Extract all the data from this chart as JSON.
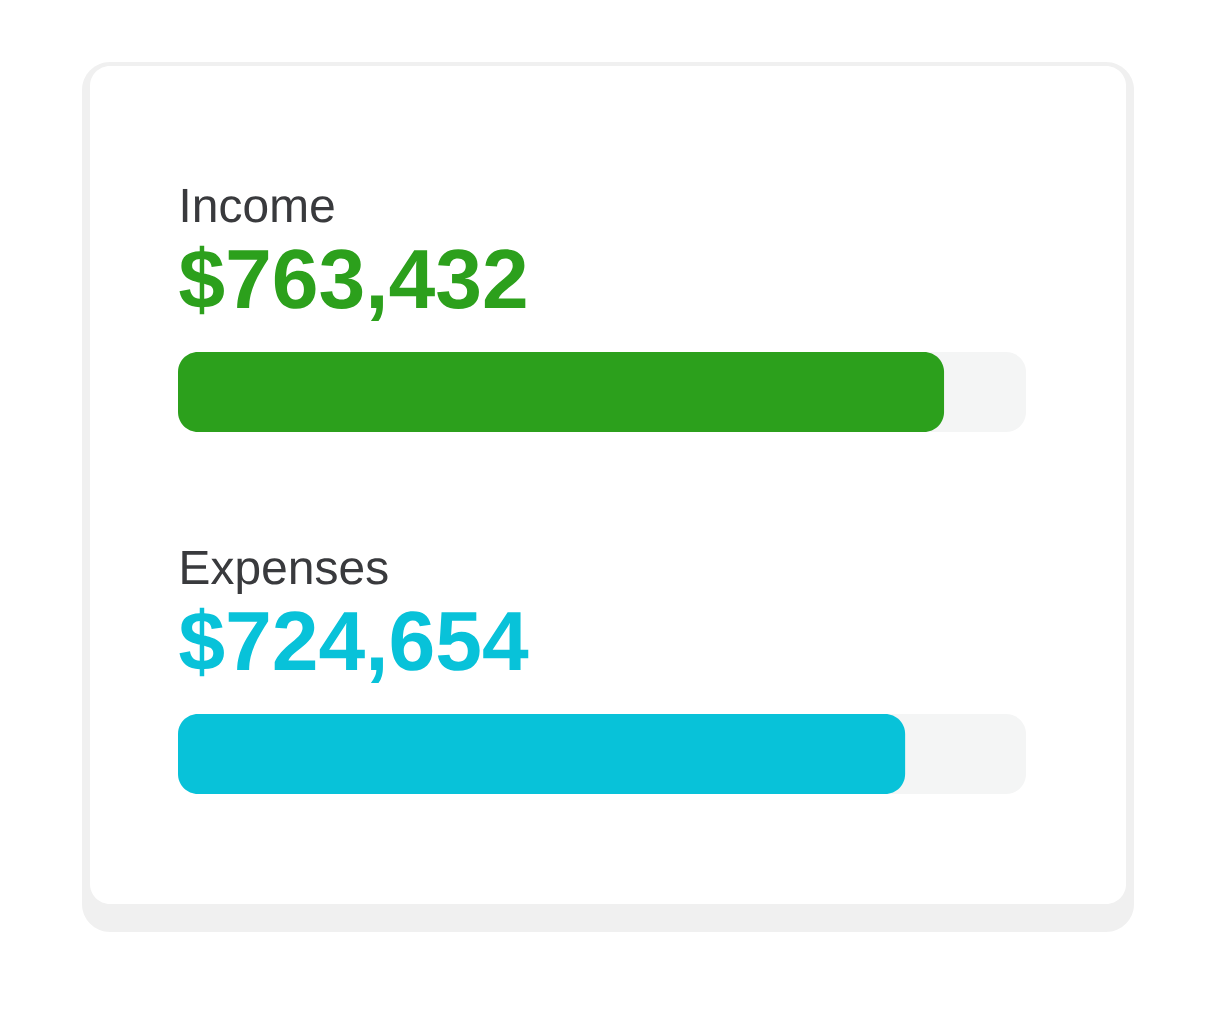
{
  "chart_data": {
    "type": "bar",
    "orientation": "horizontal",
    "categories": [
      "Income",
      "Expenses"
    ],
    "values": [
      763432,
      724654
    ],
    "value_labels": [
      "$763,432",
      "$724,654"
    ],
    "colors": [
      "#2ca01c",
      "#08c2d9"
    ]
  }
}
